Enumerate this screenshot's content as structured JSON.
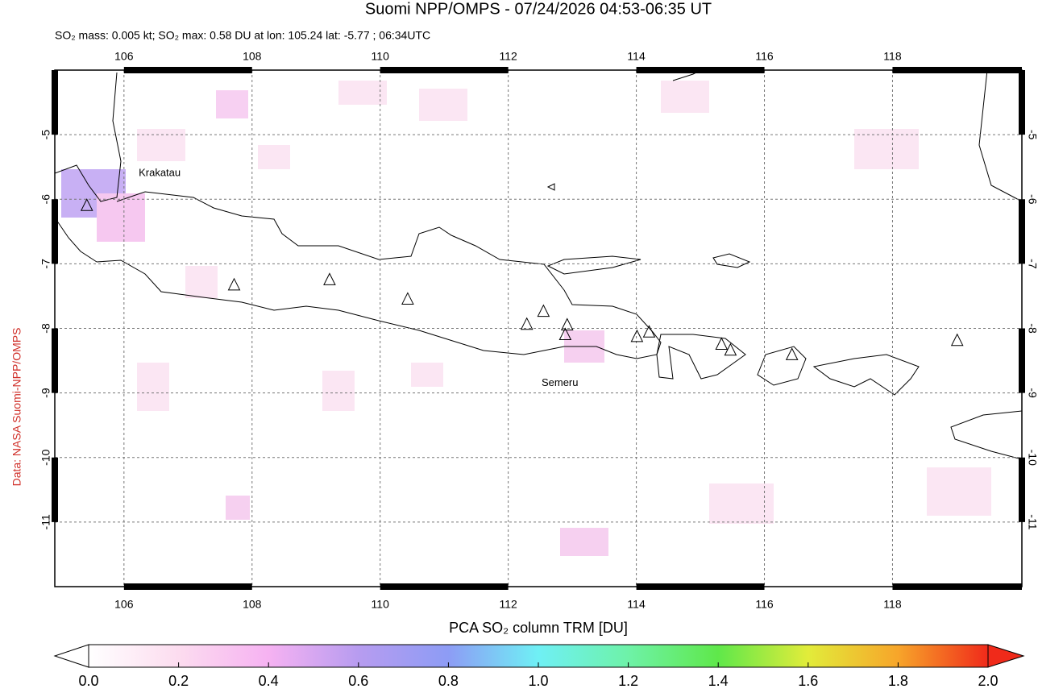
{
  "title": "Suomi NPP/OMPS - 07/24/2026 04:53-06:35 UT",
  "subtitle": "SO₂ mass: 0.005 kt; SO₂ max: 0.58 DU at lon: 105.24 lat: -5.77 ; 06:34UTC",
  "credit": "Data: NASA Suomi-NPP/OMPS",
  "map": {
    "xlim": [
      104.92,
      120.02
    ],
    "ylim": [
      -12,
      -4
    ],
    "xticks": [
      106,
      108,
      110,
      112,
      114,
      116,
      118
    ],
    "yticks": [
      -5,
      -6,
      -7,
      -8,
      -9,
      -10,
      -11
    ],
    "grid": true,
    "volcanoes": [
      {
        "lon": 105.42,
        "lat": -6.1
      },
      {
        "lon": 107.72,
        "lat": -7.33
      },
      {
        "lon": 109.21,
        "lat": -7.25
      },
      {
        "lon": 110.43,
        "lat": -7.55
      },
      {
        "lon": 112.29,
        "lat": -7.94
      },
      {
        "lon": 112.55,
        "lat": -7.74
      },
      {
        "lon": 112.92,
        "lat": -7.95
      },
      {
        "lon": 112.89,
        "lat": -8.1
      },
      {
        "lon": 114.01,
        "lat": -8.13
      },
      {
        "lon": 114.2,
        "lat": -8.06
      },
      {
        "lon": 115.33,
        "lat": -8.25
      },
      {
        "lon": 115.47,
        "lat": -8.34
      },
      {
        "lon": 116.43,
        "lat": -8.41
      },
      {
        "lon": 119.01,
        "lat": -8.19
      }
    ],
    "labels": [
      {
        "text": "Krakatau",
        "lon": 106.23,
        "lat": -5.6
      },
      {
        "text": "Semeru",
        "lon": 112.52,
        "lat": -8.85
      }
    ]
  },
  "colorbar": {
    "label": "PCA SO₂ column TRM [DU]",
    "lim": [
      0,
      2
    ],
    "ticks": [
      {
        "value": 0,
        "label": "0.0"
      },
      {
        "value": 0.2,
        "label": "0.2"
      },
      {
        "value": 0.4,
        "label": "0.4"
      },
      {
        "value": 0.6,
        "label": "0.6"
      },
      {
        "value": 0.8,
        "label": "0.8"
      },
      {
        "value": 1,
        "label": "1.0"
      },
      {
        "value": 1.2,
        "label": "1.2"
      },
      {
        "value": 1.4,
        "label": "1.4"
      },
      {
        "value": 1.6,
        "label": "1.6"
      },
      {
        "value": 1.8,
        "label": "1.8"
      },
      {
        "value": 2,
        "label": "2.0"
      }
    ]
  }
}
